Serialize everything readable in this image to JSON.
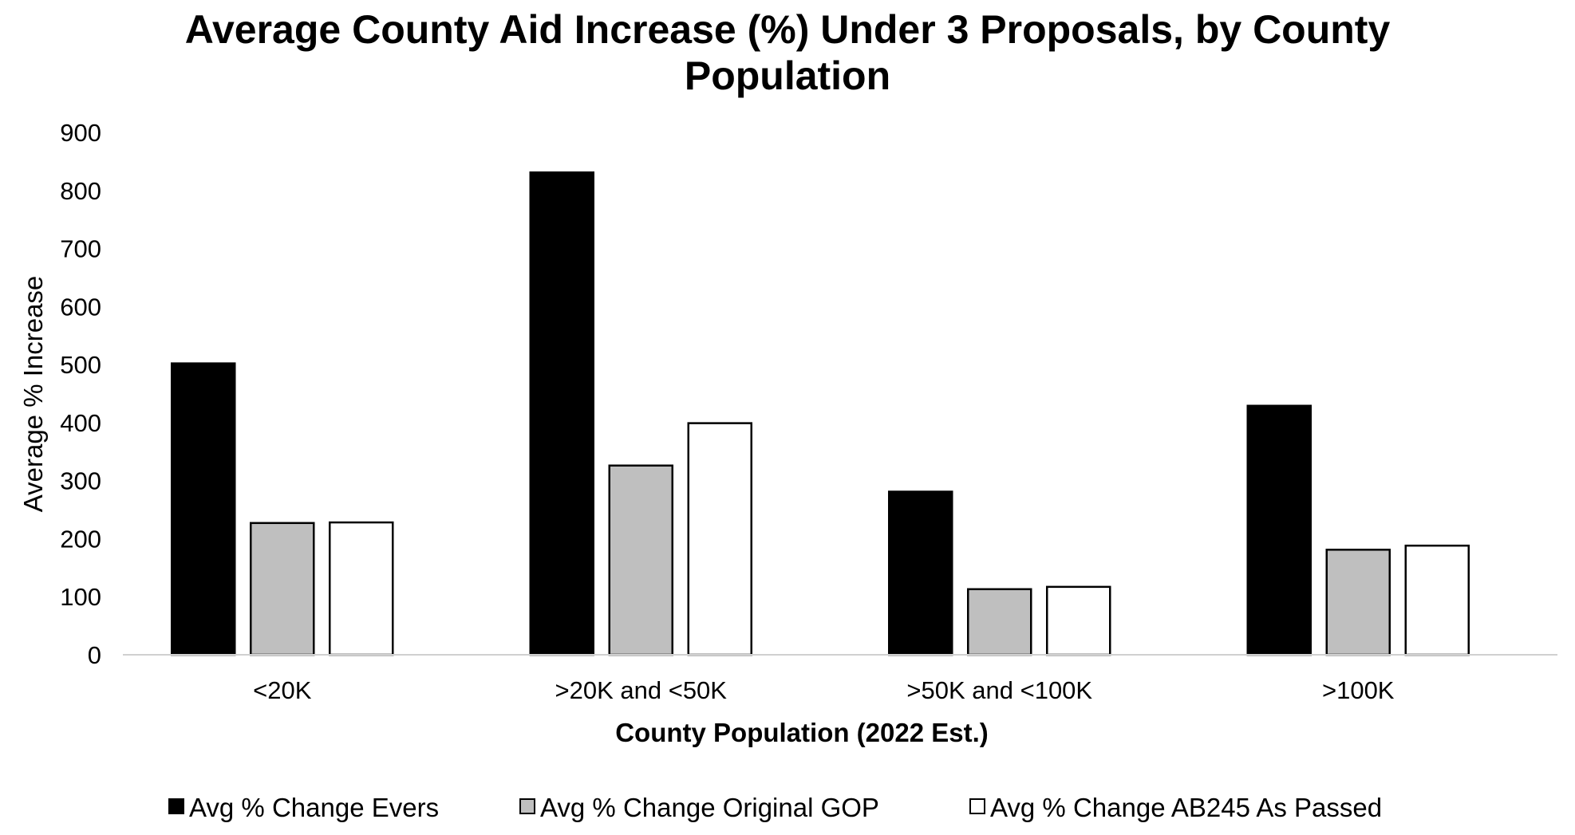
{
  "chart_data": {
    "type": "bar",
    "title": "Average County Aid Increase (%) Under 3 Proposals, by County Population",
    "title_lines": [
      "Average County Aid Increase (%) Under 3 Proposals, by County",
      "Population"
    ],
    "xlabel": "County Population (2022 Est.)",
    "ylabel": "Average % Increase",
    "categories": [
      "<20K",
      ">20K and <50K",
      ">50K and <100K",
      ">100K"
    ],
    "series": [
      {
        "name": "Avg % Change Evers",
        "color": "#000000",
        "values": [
          502,
          831,
          281,
          429
        ]
      },
      {
        "name": "Avg % Change Original GOP",
        "color": "#bfbfbf",
        "values": [
          227,
          326,
          113,
          181
        ]
      },
      {
        "name": "Avg % Change AB245 As Passed",
        "color": "#ffffff",
        "values": [
          228,
          399,
          117,
          188
        ]
      }
    ],
    "ylim": [
      0,
      900
    ],
    "yticks": [
      "0",
      "100",
      "200",
      "300",
      "400",
      "500",
      "600",
      "700",
      "800",
      "900"
    ],
    "grid": false,
    "legend_position": "bottom"
  }
}
